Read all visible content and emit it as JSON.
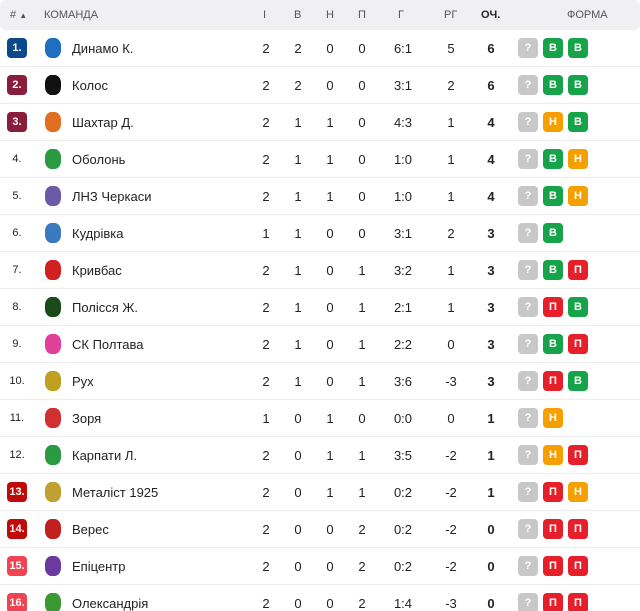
{
  "header": {
    "rank": "#",
    "sort_icon": "triangle-up",
    "team": "КОМАНДА",
    "played": "І",
    "won": "В",
    "drawn": "Н",
    "lost": "П",
    "goals": "Г",
    "diff": "РГ",
    "points": "ОЧ.",
    "form": "ФОРМА"
  },
  "colors": {
    "champions": "#0a4a8a",
    "europe": "#8a1c3c",
    "playoff": "#c00a0a",
    "relegation": "#f04452",
    "win": "#16a34a",
    "draw": "#f5a000",
    "loss": "#e5202b",
    "unknown": "#c8c8c8"
  },
  "rows": [
    {
      "rank": "1.",
      "zone": "champions",
      "team": "Динамо К.",
      "logo": "#1e6fc0",
      "p": "2",
      "w": "2",
      "d": "0",
      "l": "0",
      "g": "6:1",
      "gd": "5",
      "pts": "6",
      "form": [
        "?",
        "В",
        "В"
      ]
    },
    {
      "rank": "2.",
      "zone": "europe",
      "team": "Колос",
      "logo": "#111111",
      "p": "2",
      "w": "2",
      "d": "0",
      "l": "0",
      "g": "3:1",
      "gd": "2",
      "pts": "6",
      "form": [
        "?",
        "В",
        "В"
      ]
    },
    {
      "rank": "3.",
      "zone": "europe",
      "team": "Шахтар Д.",
      "logo": "#e07020",
      "p": "2",
      "w": "1",
      "d": "1",
      "l": "0",
      "g": "4:3",
      "gd": "1",
      "pts": "4",
      "form": [
        "?",
        "Н",
        "В"
      ]
    },
    {
      "rank": "4.",
      "zone": "",
      "team": "Оболонь",
      "logo": "#2a9a40",
      "p": "2",
      "w": "1",
      "d": "1",
      "l": "0",
      "g": "1:0",
      "gd": "1",
      "pts": "4",
      "form": [
        "?",
        "В",
        "Н"
      ]
    },
    {
      "rank": "5.",
      "zone": "",
      "team": "ЛНЗ Черкаси",
      "logo": "#6a5aa8",
      "p": "2",
      "w": "1",
      "d": "1",
      "l": "0",
      "g": "1:0",
      "gd": "1",
      "pts": "4",
      "form": [
        "?",
        "В",
        "Н"
      ]
    },
    {
      "rank": "6.",
      "zone": "",
      "team": "Кудрівка",
      "logo": "#3a78c0",
      "p": "1",
      "w": "1",
      "d": "0",
      "l": "0",
      "g": "3:1",
      "gd": "2",
      "pts": "3",
      "form": [
        "?",
        "В"
      ]
    },
    {
      "rank": "7.",
      "zone": "",
      "team": "Кривбас",
      "logo": "#d02020",
      "p": "2",
      "w": "1",
      "d": "0",
      "l": "1",
      "g": "3:2",
      "gd": "1",
      "pts": "3",
      "form": [
        "?",
        "В",
        "П"
      ]
    },
    {
      "rank": "8.",
      "zone": "",
      "team": "Полісся Ж.",
      "logo": "#1a4a1a",
      "p": "2",
      "w": "1",
      "d": "0",
      "l": "1",
      "g": "2:1",
      "gd": "1",
      "pts": "3",
      "form": [
        "?",
        "П",
        "В"
      ]
    },
    {
      "rank": "9.",
      "zone": "",
      "team": "СК Полтава",
      "logo": "#e0409a",
      "p": "2",
      "w": "1",
      "d": "0",
      "l": "1",
      "g": "2:2",
      "gd": "0",
      "pts": "3",
      "form": [
        "?",
        "В",
        "П"
      ]
    },
    {
      "rank": "10.",
      "zone": "",
      "team": "Рух",
      "logo": "#c0a020",
      "p": "2",
      "w": "1",
      "d": "0",
      "l": "1",
      "g": "3:6",
      "gd": "-3",
      "pts": "3",
      "form": [
        "?",
        "П",
        "В"
      ]
    },
    {
      "rank": "11.",
      "zone": "",
      "team": "Зоря",
      "logo": "#d03030",
      "p": "1",
      "w": "0",
      "d": "1",
      "l": "0",
      "g": "0:0",
      "gd": "0",
      "pts": "1",
      "form": [
        "?",
        "Н"
      ]
    },
    {
      "rank": "12.",
      "zone": "",
      "team": "Карпати Л.",
      "logo": "#2a9a40",
      "p": "2",
      "w": "0",
      "d": "1",
      "l": "1",
      "g": "3:5",
      "gd": "-2",
      "pts": "1",
      "form": [
        "?",
        "Н",
        "П"
      ]
    },
    {
      "rank": "13.",
      "zone": "playoff",
      "team": "Металіст 1925",
      "logo": "#c0a030",
      "p": "2",
      "w": "0",
      "d": "1",
      "l": "1",
      "g": "0:2",
      "gd": "-2",
      "pts": "1",
      "form": [
        "?",
        "П",
        "Н"
      ]
    },
    {
      "rank": "14.",
      "zone": "playoff",
      "team": "Верес",
      "logo": "#c02020",
      "p": "2",
      "w": "0",
      "d": "0",
      "l": "2",
      "g": "0:2",
      "gd": "-2",
      "pts": "0",
      "form": [
        "?",
        "П",
        "П"
      ]
    },
    {
      "rank": "15.",
      "zone": "relegation",
      "team": "Епіцентр",
      "logo": "#6a3aa0",
      "p": "2",
      "w": "0",
      "d": "0",
      "l": "2",
      "g": "0:2",
      "gd": "-2",
      "pts": "0",
      "form": [
        "?",
        "П",
        "П"
      ]
    },
    {
      "rank": "16.",
      "zone": "relegation",
      "team": "Олександрія",
      "logo": "#3a9a30",
      "p": "2",
      "w": "0",
      "d": "0",
      "l": "2",
      "g": "1:4",
      "gd": "-3",
      "pts": "0",
      "form": [
        "?",
        "П",
        "П"
      ]
    }
  ]
}
